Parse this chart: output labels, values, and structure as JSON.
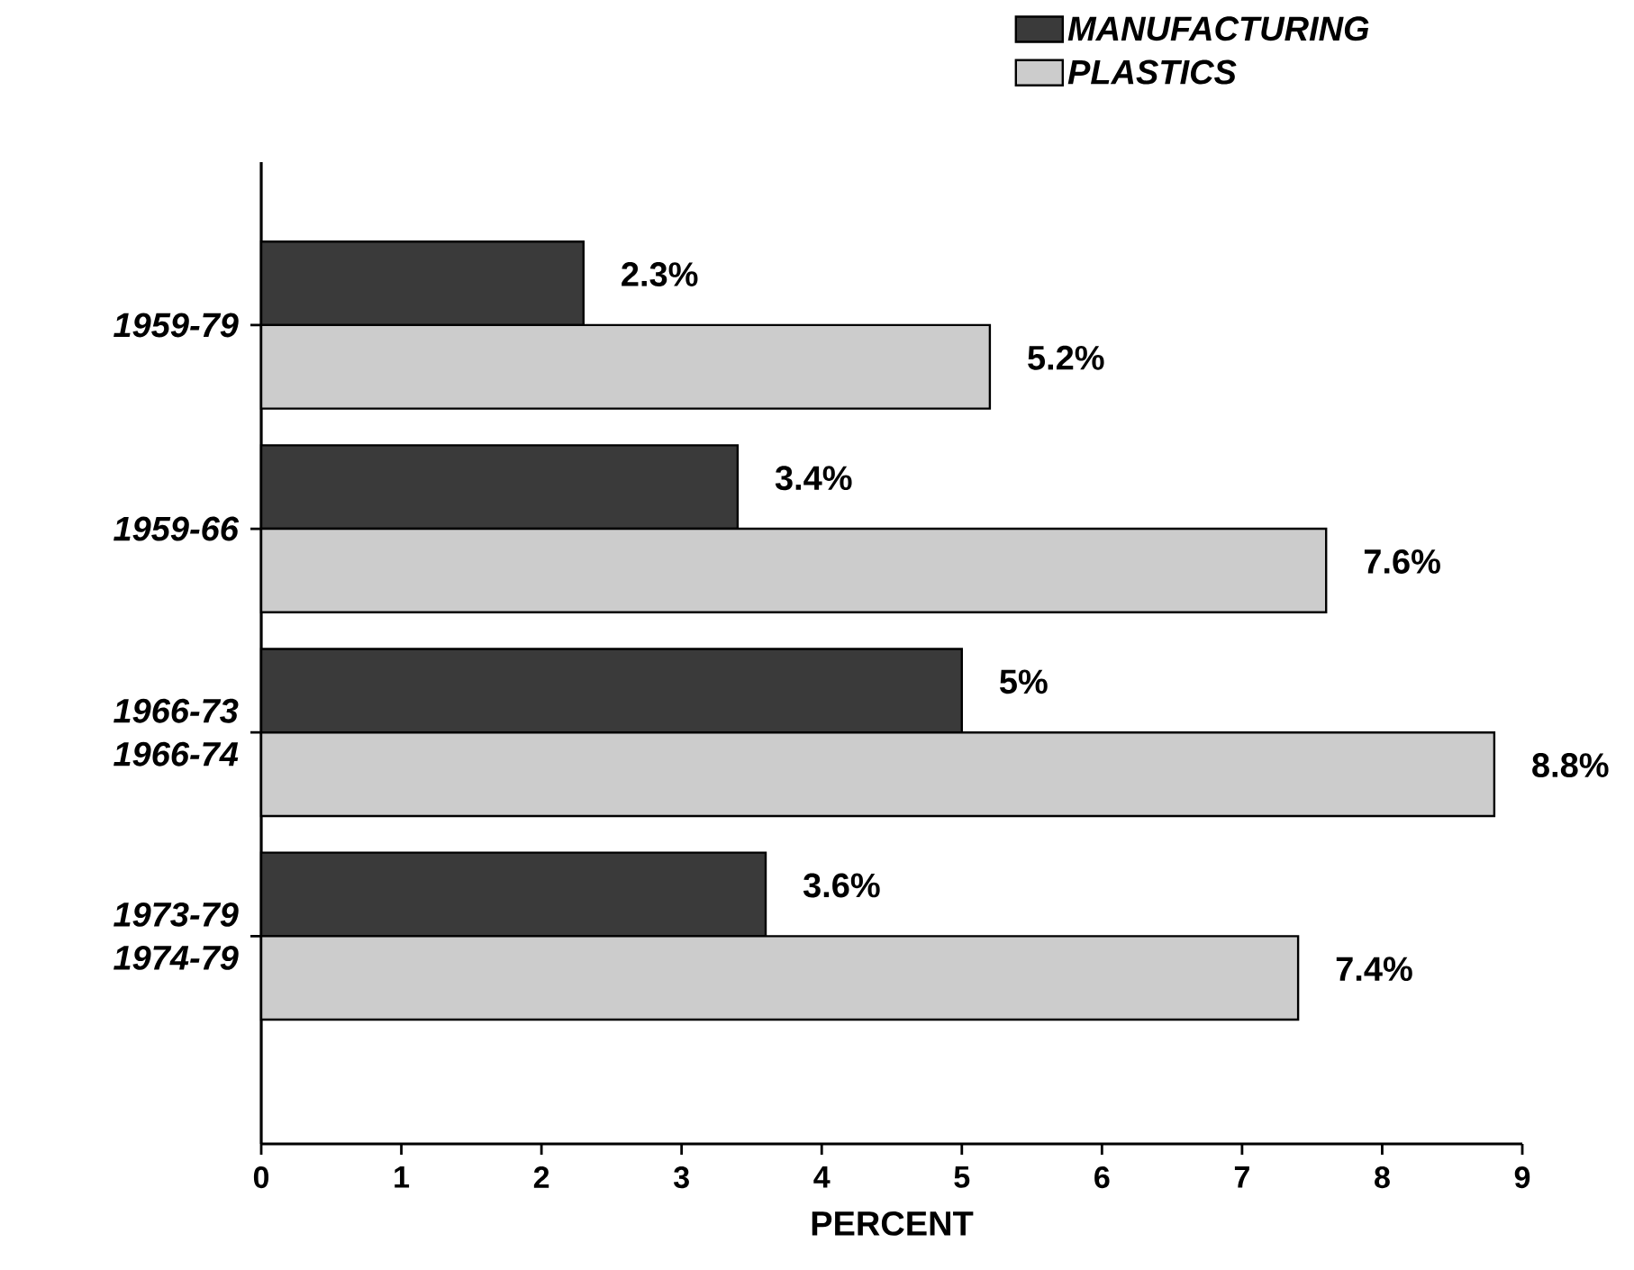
{
  "chart_data": {
    "type": "bar",
    "orientation": "horizontal",
    "categories": [
      "1959-79",
      "1959-66",
      "1966-73 1966-74",
      "1973-79 1974-79"
    ],
    "series": [
      {
        "name": "MANUFACTURING",
        "color": "#3a3a3a",
        "values": [
          2.3,
          3.4,
          5,
          3.6
        ],
        "value_labels": [
          "2.3%",
          "3.4%",
          "5%",
          "3.6%"
        ]
      },
      {
        "name": "PLASTICS",
        "color": "#cccccc",
        "values": [
          5.2,
          7.6,
          8.8,
          7.4
        ],
        "value_labels": [
          "5.2%",
          "7.6%",
          "8.8%",
          "7.4%"
        ]
      }
    ],
    "xlabel": "PERCENT",
    "xlim": [
      0,
      9
    ],
    "xticks": [
      0,
      1,
      2,
      3,
      4,
      5,
      6,
      7,
      8,
      9
    ],
    "legend": "top right",
    "grid": false
  }
}
